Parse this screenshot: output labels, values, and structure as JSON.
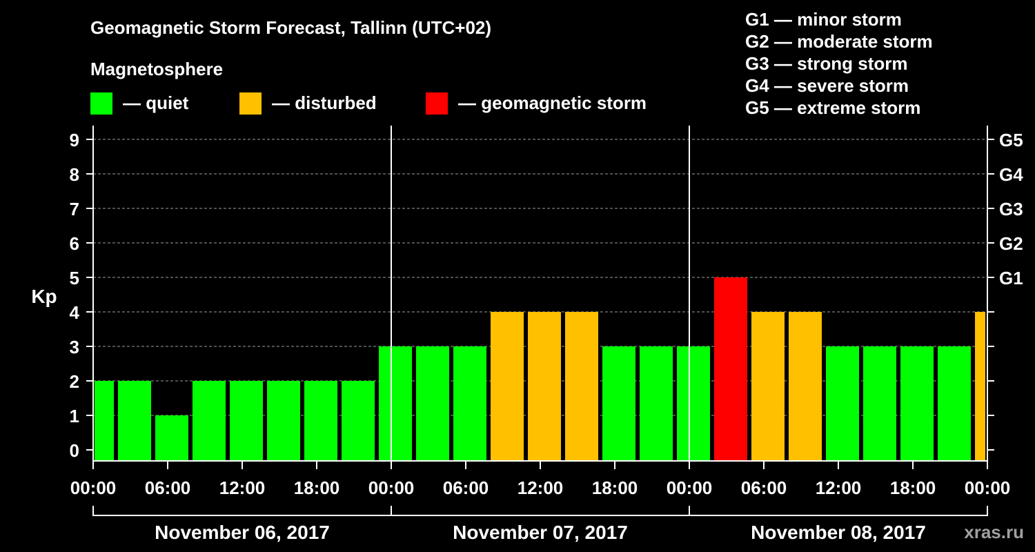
{
  "colors": {
    "quiet": "#00ff00",
    "disturbed": "#ffc000",
    "storm": "#ff0000",
    "background": "#000000",
    "foreground": "#ffffff",
    "watermark": "#a0a0a0"
  },
  "header": {
    "title": "Geomagnetic Storm Forecast, Tallinn (UTC+02)",
    "subtitle": "Magnetosphere"
  },
  "legend": {
    "items": [
      {
        "status": "quiet",
        "label": "— quiet"
      },
      {
        "status": "disturbed",
        "label": "— disturbed"
      },
      {
        "status": "storm",
        "label": "— geomagnetic storm"
      }
    ],
    "scale": [
      "G1 — minor storm",
      "G2 — moderate storm",
      "G3 — strong storm",
      "G4 — severe storm",
      "G5 — extreme storm"
    ]
  },
  "watermark": "xras.ru",
  "chart_data": {
    "type": "bar",
    "ylabel": "Kp",
    "ylim": [
      0,
      9
    ],
    "y_ticks": [
      "0",
      "1",
      "2",
      "3",
      "4",
      "5",
      "6",
      "7",
      "8",
      "9"
    ],
    "right_tick_labels": [
      {
        "value": 5,
        "label": "G1"
      },
      {
        "value": 6,
        "label": "G2"
      },
      {
        "value": 7,
        "label": "G3"
      },
      {
        "value": 8,
        "label": "G4"
      },
      {
        "value": 9,
        "label": "G5"
      }
    ],
    "x_tick_labels": [
      "00:00",
      "06:00",
      "12:00",
      "18:00",
      "00:00",
      "06:00",
      "12:00",
      "18:00",
      "00:00",
      "06:00",
      "12:00",
      "18:00",
      "00:00"
    ],
    "dates": [
      "November 06, 2017",
      "November 07, 2017",
      "November 08, 2017"
    ],
    "grid": "dashed horizontal",
    "bars": [
      {
        "start": "2017-11-06 00:00",
        "kp": 2,
        "status": "quiet"
      },
      {
        "start": "2017-11-06 02:00",
        "kp": 2,
        "status": "quiet"
      },
      {
        "start": "2017-11-06 05:00",
        "kp": 1,
        "status": "quiet"
      },
      {
        "start": "2017-11-06 08:00",
        "kp": 2,
        "status": "quiet"
      },
      {
        "start": "2017-11-06 11:00",
        "kp": 2,
        "status": "quiet"
      },
      {
        "start": "2017-11-06 14:00",
        "kp": 2,
        "status": "quiet"
      },
      {
        "start": "2017-11-06 17:00",
        "kp": 2,
        "status": "quiet"
      },
      {
        "start": "2017-11-06 20:00",
        "kp": 2,
        "status": "quiet"
      },
      {
        "start": "2017-11-06 23:00",
        "kp": 3,
        "status": "quiet"
      },
      {
        "start": "2017-11-07 02:00",
        "kp": 3,
        "status": "quiet"
      },
      {
        "start": "2017-11-07 05:00",
        "kp": 3,
        "status": "quiet"
      },
      {
        "start": "2017-11-07 08:00",
        "kp": 4,
        "status": "disturbed"
      },
      {
        "start": "2017-11-07 11:00",
        "kp": 4,
        "status": "disturbed"
      },
      {
        "start": "2017-11-07 14:00",
        "kp": 4,
        "status": "disturbed"
      },
      {
        "start": "2017-11-07 17:00",
        "kp": 3,
        "status": "quiet"
      },
      {
        "start": "2017-11-07 20:00",
        "kp": 3,
        "status": "quiet"
      },
      {
        "start": "2017-11-07 23:00",
        "kp": 3,
        "status": "quiet"
      },
      {
        "start": "2017-11-08 02:00",
        "kp": 5,
        "status": "storm"
      },
      {
        "start": "2017-11-08 05:00",
        "kp": 4,
        "status": "disturbed"
      },
      {
        "start": "2017-11-08 08:00",
        "kp": 4,
        "status": "disturbed"
      },
      {
        "start": "2017-11-08 11:00",
        "kp": 3,
        "status": "quiet"
      },
      {
        "start": "2017-11-08 14:00",
        "kp": 3,
        "status": "quiet"
      },
      {
        "start": "2017-11-08 17:00",
        "kp": 3,
        "status": "quiet"
      },
      {
        "start": "2017-11-08 20:00",
        "kp": 3,
        "status": "quiet"
      },
      {
        "start": "2017-11-08 23:00",
        "kp": 4,
        "status": "disturbed"
      }
    ]
  }
}
